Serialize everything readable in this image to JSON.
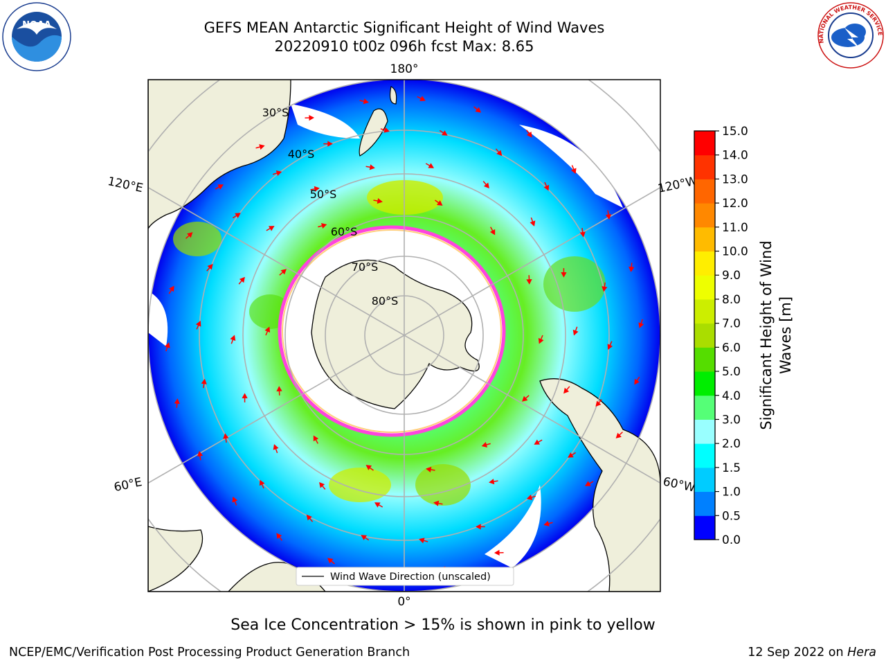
{
  "title": {
    "line1": "GEFS MEAN Antarctic Significant Height of Wind Waves",
    "line2": "20220910 t00z 096h fcst   Max: 8.65"
  },
  "map": {
    "projection": "south-polar-stereographic",
    "meridian_labels": {
      "top": "180°",
      "bottom": "0°",
      "upper_left": "120°E",
      "lower_left": "60°E",
      "upper_right": "120°W",
      "lower_right": "60°W"
    },
    "parallel_labels": [
      "30°S",
      "40°S",
      "50°S",
      "60°S",
      "70°S",
      "80°S"
    ],
    "legend_label": "Wind Wave Direction (unscaled)",
    "colors": {
      "land": "#efefdb",
      "ocean_no_data": "#ffffff",
      "ice_edge": "#ff44dd",
      "grid": "#b0b0b0",
      "arrow": "#ff0000"
    }
  },
  "colorbar": {
    "label": "Significant Height of Wind Waves [m]",
    "label_line1": "Significant Height of Wind",
    "label_line2": "Waves [m]",
    "ticks": [
      "0.0",
      "0.5",
      "1.0",
      "1.5",
      "2.0",
      "3.0",
      "4.0",
      "5.0",
      "6.0",
      "7.0",
      "8.0",
      "9.0",
      "10.0",
      "11.0",
      "12.0",
      "13.0",
      "14.0",
      "15.0"
    ],
    "colors": [
      "#0000ff",
      "#0080ff",
      "#00ccff",
      "#00ffff",
      "#99ffff",
      "#55ff77",
      "#00ee00",
      "#55dd00",
      "#aadd00",
      "#ccee00",
      "#eeff00",
      "#ffee00",
      "#ffbb00",
      "#ff8800",
      "#ff6600",
      "#ff3300",
      "#ff0000"
    ]
  },
  "caption": "Sea Ice Concentration > 15% is shown in pink to yellow",
  "footer": {
    "left": "NCEP/EMC/Verification Post Processing Product Generation Branch",
    "right_prefix": "12 Sep 2022 on ",
    "right_host": "Hera"
  },
  "logos": {
    "noaa_text": "NOAA",
    "nws_text": "NATIONAL WEATHER SERVICE"
  }
}
